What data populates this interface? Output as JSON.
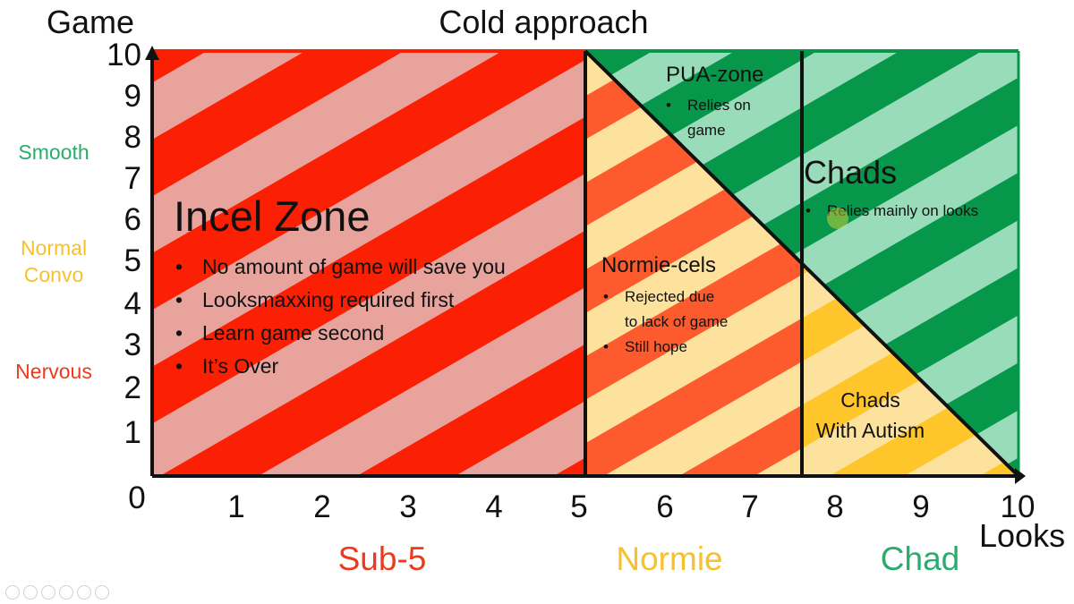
{
  "title": "Cold approach",
  "axes": {
    "y_title": "Game",
    "x_title": "Looks",
    "y_ticks": [
      "10",
      "9",
      "8",
      "7",
      "6",
      "5",
      "4",
      "3",
      "2",
      "1"
    ],
    "x_ticks": [
      "0",
      "1",
      "2",
      "3",
      "4",
      "5",
      "6",
      "7",
      "8",
      "9",
      "10"
    ]
  },
  "game_levels": [
    {
      "label": "Smooth",
      "color": "#2bab6c"
    },
    {
      "label": "Normal\nConvo",
      "color": "#f6c12c"
    },
    {
      "label": "Nervous",
      "color": "#ec3b1c"
    }
  ],
  "look_bands": [
    {
      "label": "Sub-5",
      "color": "#ec3b1c"
    },
    {
      "label": "Normie",
      "color": "#f6c12c"
    },
    {
      "label": "Chad",
      "color": "#2bab6c"
    }
  ],
  "zones": {
    "incel": {
      "title": "Incel Zone",
      "bullets": [
        "No amount of game will save you",
        "Looksmaxxing required first",
        "Learn game second",
        "It’s Over"
      ]
    },
    "normie_cels": {
      "title": "Normie-cels",
      "bullets": [
        "Rejected due\nto lack of game",
        "Still hope"
      ]
    },
    "pua": {
      "title": "PUA-zone",
      "bullets": [
        "Relies on\ngame"
      ]
    },
    "chads": {
      "title": "Chads",
      "bullets": [
        "Relies mainly on looks"
      ]
    },
    "chads_autism": {
      "title": "Chads\nWith Autism"
    }
  },
  "colors": {
    "incel_stripe_dark": "#fb1f04",
    "incel_stripe_light": "#e7a39c",
    "normie_stripe_dark": "#fd5b2e",
    "normie_stripe_light": "#fde29d",
    "green_stripe_dark": "#06974a",
    "green_stripe_light": "#99dcba",
    "autism_stripe_dark": "#ffc62b",
    "autism_stripe_light": "#fde29d"
  },
  "chart_data": {
    "type": "zone-diagram",
    "x_range": [
      0,
      10
    ],
    "y_range": [
      0,
      10
    ],
    "boundaries": {
      "vertical_lines_at_x": [
        5,
        7.5
      ],
      "diagonal_line": {
        "from": [
          5,
          10
        ],
        "to": [
          10,
          0
        ]
      }
    },
    "regions": [
      {
        "name": "Incel Zone",
        "x": [
          0,
          5
        ],
        "y": [
          0,
          10
        ]
      },
      {
        "name": "Normie-cels",
        "x": [
          5,
          7.5
        ],
        "below_diagonal": true
      },
      {
        "name": "PUA-zone",
        "x": [
          5,
          7.5
        ],
        "above_diagonal": true
      },
      {
        "name": "Chads",
        "x": [
          7.5,
          10
        ],
        "above_diagonal": true
      },
      {
        "name": "Chads With Autism",
        "x": [
          7.5,
          10
        ],
        "below_diagonal": true
      }
    ]
  }
}
